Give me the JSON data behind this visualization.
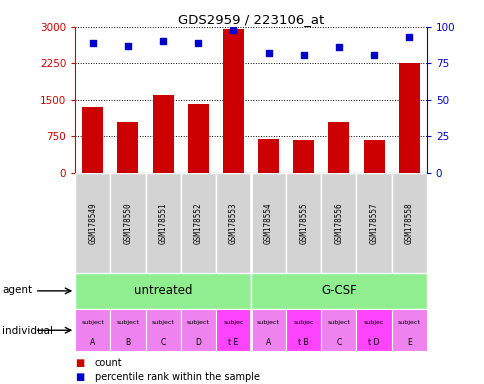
{
  "title": "GDS2959 / 223106_at",
  "samples": [
    "GSM178549",
    "GSM178550",
    "GSM178551",
    "GSM178552",
    "GSM178553",
    "GSM178554",
    "GSM178555",
    "GSM178556",
    "GSM178557",
    "GSM178558"
  ],
  "counts": [
    1350,
    1050,
    1600,
    1420,
    2950,
    700,
    680,
    1050,
    680,
    2250
  ],
  "percentile_ranks": [
    89,
    87,
    90,
    89,
    98,
    82,
    81,
    86,
    81,
    93
  ],
  "ylim_left": [
    0,
    3000
  ],
  "ylim_right": [
    0,
    100
  ],
  "yticks_left": [
    0,
    750,
    1500,
    2250,
    3000
  ],
  "yticks_right": [
    0,
    25,
    50,
    75,
    100
  ],
  "bar_color": "#cc0000",
  "dot_color": "#0000cc",
  "individual_labels_top": [
    "subject",
    "subject",
    "subject",
    "subject",
    "subjec",
    "subject",
    "subjec",
    "subject",
    "subjec",
    "subject"
  ],
  "individual_labels_bot": [
    "A",
    "B",
    "C",
    "D",
    "t E",
    "A",
    "t B",
    "C",
    "t D",
    "E"
  ],
  "individual_highlight": [
    4,
    6,
    8
  ],
  "individual_color_normal": "#ee82ee",
  "individual_color_highlight": "#ff44ff",
  "legend_count": "count",
  "legend_pct": "percentile rank within the sample",
  "tick_color_left": "#cc0000",
  "tick_color_right": "#0000cc",
  "bg_color_samples": "#d3d3d3",
  "agent_color": "#90ee90",
  "agent_labels": [
    "untreated",
    "G-CSF"
  ],
  "agent_label_left": "agent",
  "individual_label_left": "individual"
}
